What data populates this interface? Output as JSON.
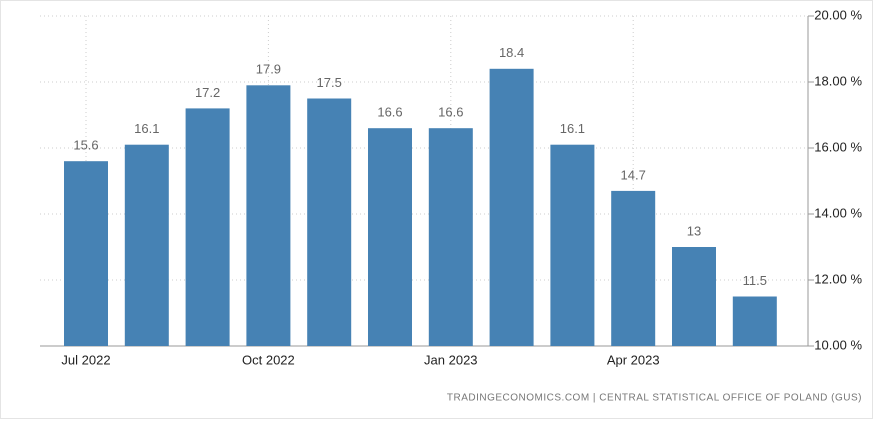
{
  "chart_data": {
    "type": "bar",
    "categories": [
      "Jul 2022",
      null,
      null,
      "Oct 2022",
      null,
      null,
      "Jan 2023",
      null,
      null,
      "Apr 2023",
      null,
      null
    ],
    "values": [
      15.6,
      16.1,
      17.2,
      17.9,
      17.5,
      16.6,
      16.6,
      18.4,
      16.1,
      14.7,
      13,
      11.5
    ],
    "color": "#4682b4",
    "ylim": [
      10,
      20
    ],
    "yticks": [
      {
        "value": 10,
        "label": "10.00 %"
      },
      {
        "value": 12,
        "label": "12.00 %"
      },
      {
        "value": 14,
        "label": "14.00 %"
      },
      {
        "value": 16,
        "label": "16.00 %"
      },
      {
        "value": 18,
        "label": "18.00 %"
      },
      {
        "value": 20,
        "label": "20.00 %"
      }
    ],
    "grid": true,
    "source": "TRADINGECONOMICS.COM  |  CENTRAL STATISTICAL OFFICE OF POLAND (GUS)"
  }
}
